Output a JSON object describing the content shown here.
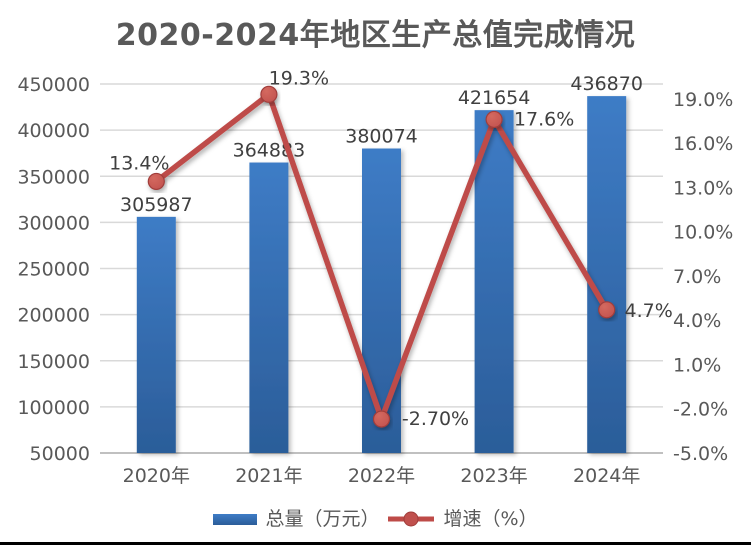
{
  "chart_data": {
    "type": "combo-bar-line",
    "title": "2020-2024年地区生产总值完成情况",
    "categories": [
      "2020年",
      "2021年",
      "2022年",
      "2023年",
      "2024年"
    ],
    "series": [
      {
        "name": "总量（万元）",
        "type": "bar",
        "axis": "left",
        "values": [
          305987,
          364883,
          380074,
          421654,
          436870
        ],
        "labels": [
          "305987",
          "364883",
          "380074",
          "421654",
          "436870"
        ]
      },
      {
        "name": "增速（%）",
        "type": "line",
        "axis": "right",
        "values": [
          13.4,
          19.3,
          -2.7,
          17.6,
          4.7
        ],
        "labels": [
          "13.4%",
          "19.3%",
          "-2.70%",
          "17.6%",
          "4.7%"
        ]
      }
    ],
    "left_axis": {
      "min": 50000,
      "max": 450000,
      "step": 50000,
      "ticks": [
        450000,
        400000,
        350000,
        300000,
        250000,
        200000,
        150000,
        100000,
        50000
      ]
    },
    "right_axis": {
      "min": -5,
      "max": 20,
      "step": 3,
      "tick_values": [
        19,
        16,
        13,
        10,
        7,
        4,
        1,
        -2,
        -5
      ],
      "tick_labels": [
        "19.0%",
        "16.0%",
        "13.0%",
        "10.0%",
        "7.0%",
        "4.0%",
        "1.0%",
        "-2.0%",
        "-5.0%"
      ]
    },
    "legend": {
      "position": "bottom",
      "entries": [
        "总量（万元）",
        "增速（%）"
      ]
    },
    "grid": "horizontal",
    "colors": {
      "bar_top": "#3E7CC6",
      "bar_bottom": "#2B5D99",
      "line": "#BE4B48",
      "marker": "#C0504D",
      "marker_highlight": "#D4695F",
      "marker_stroke": "#A03D3A",
      "grid": "#D9D9D9",
      "axis_line": "#C0C0C0",
      "tick_text": "#595959",
      "data_label_text": "#404040",
      "title_text": "#595959",
      "bottom_border": "#000000"
    }
  }
}
